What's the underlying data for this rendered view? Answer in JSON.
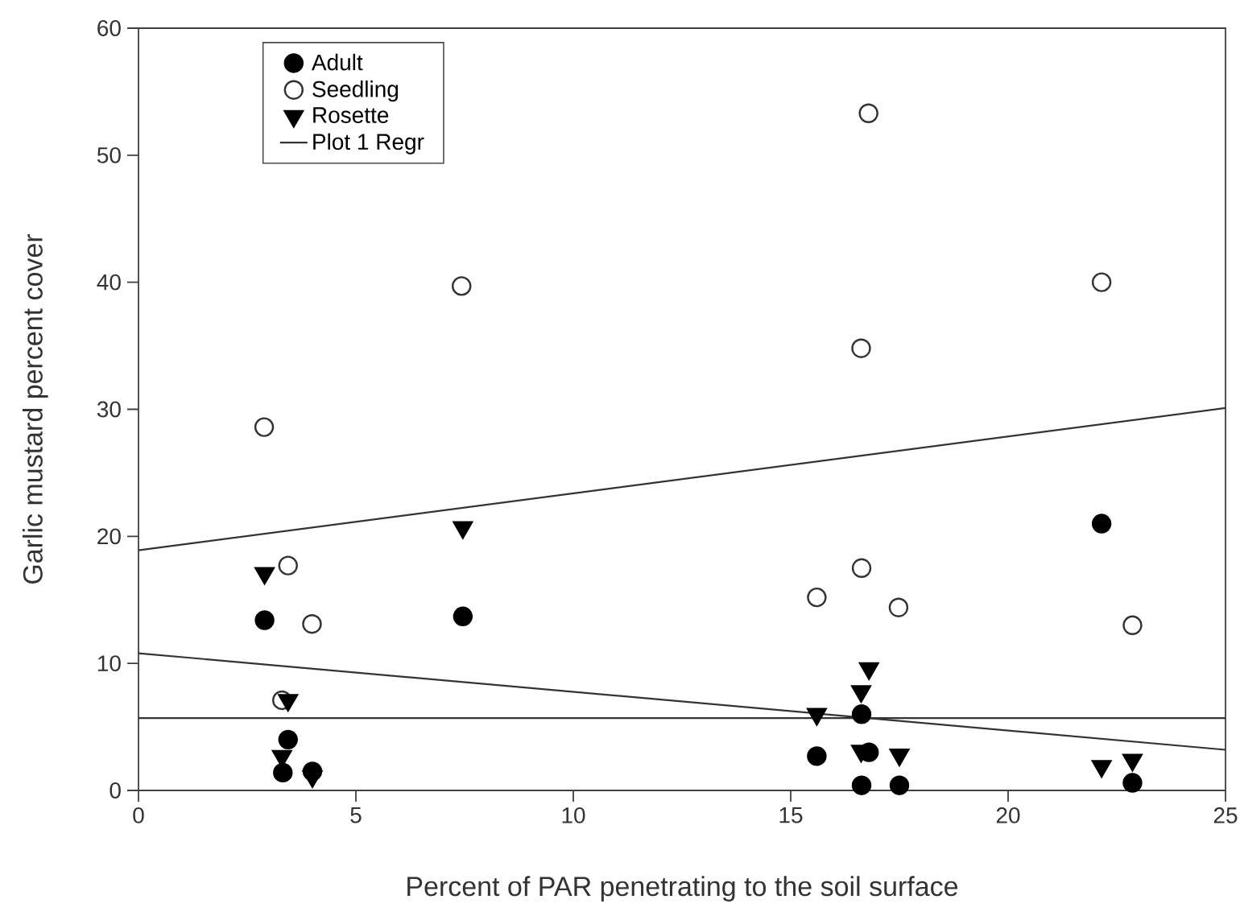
{
  "chart_data": {
    "type": "scatter",
    "xlabel": "Percent of PAR penetrating to the soil surface",
    "ylabel": "Garlic mustard percent cover",
    "xlim": [
      0,
      25
    ],
    "xticks": [
      0,
      5,
      10,
      15,
      20,
      25
    ],
    "ylim": [
      0,
      60
    ],
    "yticks": [
      0,
      10,
      20,
      30,
      40,
      50,
      60
    ],
    "grid": false,
    "legend": "top left",
    "series": [
      {
        "name": "Adult",
        "color": "#000000",
        "marker": "circle",
        "x": [
          2.9,
          7.46,
          3.44,
          3.32,
          4.0,
          22.15,
          15.6,
          16.63,
          16.8,
          16.63,
          17.5,
          22.86
        ],
        "values": [
          13.4,
          13.7,
          4.0,
          1.4,
          1.5,
          21.0,
          2.7,
          6.0,
          3.0,
          0.4,
          0.4,
          0.6
        ]
      },
      {
        "name": "Seedling",
        "color": "#333333",
        "marker": "circle-open",
        "x": [
          7.43,
          2.89,
          16.79,
          22.15,
          16.62,
          3.44,
          3.99,
          3.3,
          15.6,
          16.63,
          17.48,
          22.86
        ],
        "values": [
          39.7,
          28.6,
          53.3,
          40.0,
          34.8,
          17.7,
          13.1,
          7.1,
          15.2,
          17.5,
          14.4,
          13.0
        ]
      },
      {
        "name": "Rosette",
        "color": "#000000",
        "marker": "triangle",
        "x": [
          2.9,
          7.46,
          3.44,
          3.3,
          4.0,
          16.8,
          16.62,
          15.6,
          16.62,
          17.5,
          22.15,
          22.86
        ],
        "values": [
          17.1,
          20.7,
          7.1,
          2.7,
          1.1,
          9.6,
          7.8,
          6.0,
          3.1,
          2.8,
          1.9,
          2.4
        ]
      },
      {
        "name": "Plot 1 Regr",
        "type": "line",
        "color": "#333333",
        "marker": "none",
        "line_style": "solid",
        "x": [
          0,
          25
        ],
        "values": [
          18.9,
          30.1
        ]
      },
      {
        "type": "line",
        "color": "#333333",
        "marker": "none",
        "line_style": "solid",
        "x": [
          0,
          25
        ],
        "values": [
          10.8,
          3.2
        ]
      },
      {
        "type": "line",
        "color": "#333333",
        "marker": "none",
        "line_style": "solid",
        "x": [
          0,
          25
        ],
        "values": [
          5.7,
          5.7
        ]
      }
    ]
  }
}
